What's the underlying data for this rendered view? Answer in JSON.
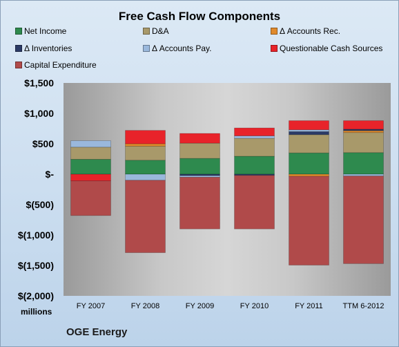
{
  "chart_data": {
    "type": "bar",
    "title": "Free Cash Flow Components",
    "categories": [
      "FY 2007",
      "FY 2008",
      "FY 2009",
      "FY 2010",
      "FY 2011",
      "TTM 6-2012"
    ],
    "ylim": [
      -2000,
      1500
    ],
    "yticks": [
      1500,
      1000,
      500,
      0,
      -500,
      -1000,
      -1500,
      -2000
    ],
    "yticklabels": [
      "$1,500",
      "$1,000",
      "$500",
      "$-",
      "$(500)",
      "$(1,000)",
      "$(1,500)",
      "$(2,000)"
    ],
    "unit_label": "millions",
    "grid": false,
    "legend_position": "top",
    "stacked": true,
    "series": [
      {
        "name": "Net Income",
        "color": "#2e8a4e",
        "values": [
          245,
          230,
          260,
          295,
          350,
          355
        ]
      },
      {
        "name": "D&A",
        "color": "#a8996a",
        "values": [
          200,
          230,
          250,
          295,
          300,
          330
        ]
      },
      {
        "name": "Δ Accounts Rec.",
        "color": "#e08a2c",
        "values": [
          0,
          40,
          0,
          0,
          -35,
          30
        ]
      },
      {
        "name": "Δ Inventories",
        "color": "#2b3a66",
        "values": [
          0,
          0,
          -25,
          -20,
          50,
          25
        ]
      },
      {
        "name": "Δ Accounts Pay.",
        "color": "#9ab8dc",
        "values": [
          105,
          -100,
          -25,
          40,
          30,
          -30
        ]
      },
      {
        "name": "Questionable Cash Sources",
        "color": "#e8232a",
        "values": [
          -110,
          220,
          160,
          130,
          150,
          140
        ]
      },
      {
        "name": "Capital Expenditure",
        "color": "#b04a4a",
        "values": [
          -570,
          -1190,
          -850,
          -880,
          -1460,
          -1440
        ]
      }
    ]
  },
  "footer": {
    "company": "OGE Energy"
  }
}
